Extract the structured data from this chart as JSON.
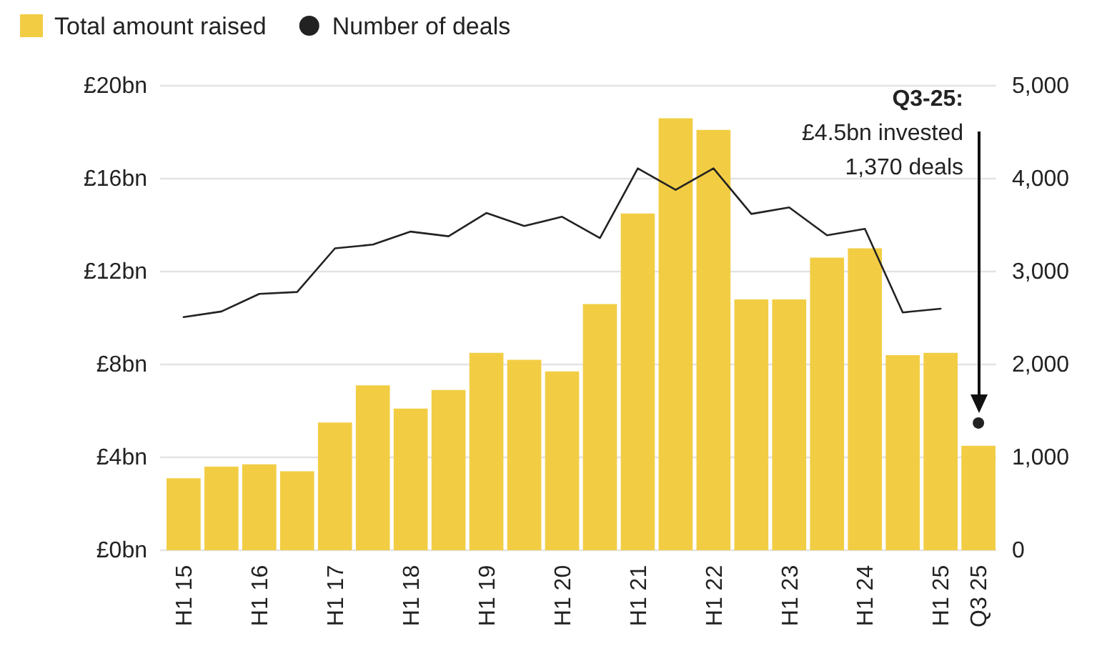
{
  "chart_data": {
    "type": "bar",
    "categories": [
      "H1 15",
      null,
      "H1 16",
      null,
      "H1 17",
      null,
      "H1 18",
      null,
      "H1 19",
      null,
      "H1 20",
      null,
      "H1 21",
      null,
      "H1 22",
      null,
      "H1 23",
      null,
      "H1 24",
      null,
      "H1 25",
      "Q3 25"
    ],
    "series": [
      {
        "name": "Total amount raised",
        "color": "#f2cd44",
        "values": [
          3.1,
          3.6,
          3.7,
          3.4,
          5.5,
          7.1,
          6.1,
          6.9,
          8.5,
          8.2,
          7.7,
          10.6,
          14.5,
          18.6,
          18.1,
          10.8,
          10.8,
          12.6,
          13.0,
          8.4,
          8.5,
          4.5
        ]
      },
      {
        "name": "Number of deals",
        "type": "line",
        "axis": "y2",
        "color": "#222222",
        "values": [
          2510,
          2570,
          2760,
          2780,
          3250,
          3290,
          3430,
          3380,
          3630,
          3490,
          3590,
          3360,
          4110,
          3880,
          4110,
          3620,
          3690,
          3390,
          3460,
          2560,
          2600,
          null
        ]
      },
      {
        "type": "scatter",
        "axis": "y2",
        "color": "#222222",
        "marker": "circle",
        "values": [
          null,
          null,
          null,
          null,
          null,
          null,
          null,
          null,
          null,
          null,
          null,
          null,
          null,
          null,
          null,
          null,
          null,
          null,
          null,
          null,
          null,
          1370
        ]
      }
    ],
    "ylim": [
      0,
      20
    ],
    "yticks": [
      {
        "value": 0,
        "label": "£0bn"
      },
      {
        "value": 4,
        "label": "£4bn"
      },
      {
        "value": 8,
        "label": "£8bn"
      },
      {
        "value": 12,
        "label": "£12bn"
      },
      {
        "value": 16,
        "label": "£16bn"
      },
      {
        "value": 20,
        "label": "£20bn"
      }
    ],
    "y2lim": [
      0,
      5000
    ],
    "y2ticks": [
      {
        "value": 0,
        "label": "0"
      },
      {
        "value": 1000,
        "label": "1,000"
      },
      {
        "value": 2000,
        "label": "2,000"
      },
      {
        "value": 3000,
        "label": "3,000"
      },
      {
        "value": 4000,
        "label": "4,000"
      },
      {
        "value": 5000,
        "label": "5,000"
      }
    ],
    "grid": "y",
    "legend": "top left",
    "annotations": [
      "Q3-25:\n£4.5bn invested\n1,370 deals"
    ]
  }
}
